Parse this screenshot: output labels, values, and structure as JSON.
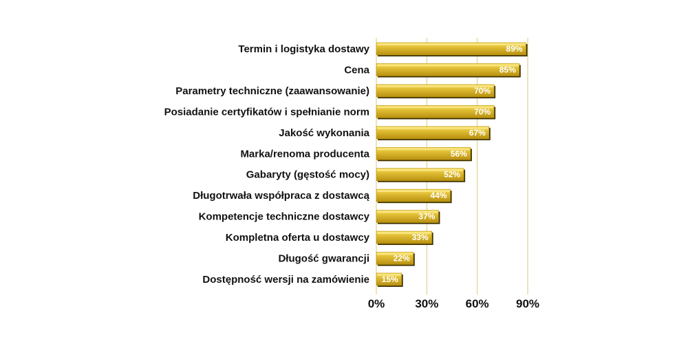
{
  "chart_data": {
    "type": "bar",
    "orientation": "horizontal",
    "categories": [
      "Termin i logistyka dostawy",
      "Cena",
      "Parametry techniczne (zaawansowanie)",
      "Posiadanie certyfikatów i spełnianie norm",
      "Jakość wykonania",
      "Marka/renoma producenta",
      "Gabaryty (gęstość mocy)",
      "Długotrwała współpraca z dostawcą",
      "Kompetencje techniczne dostawcy",
      "Kompletna oferta u dostawcy",
      "Długość gwarancji",
      "Dostępność wersji na zamówienie"
    ],
    "values": [
      89,
      85,
      70,
      70,
      67,
      56,
      52,
      44,
      37,
      33,
      22,
      15
    ],
    "data_labels": [
      "89%",
      "85%",
      "70%",
      "70%",
      "67%",
      "56%",
      "52%",
      "44%",
      "37%",
      "33%",
      "22%",
      "15%"
    ],
    "xlim": [
      0,
      90
    ],
    "xticks": [
      0,
      30,
      60,
      90
    ],
    "xtick_labels": [
      "0%",
      "30%",
      "60%",
      "90%"
    ],
    "grid": true,
    "legend": "none",
    "colors": {
      "bar_light": "#f7d84a",
      "bar_dark": "#b8900f",
      "bar_shadow": "#3a3000",
      "gridline": "#d9c87a"
    }
  }
}
